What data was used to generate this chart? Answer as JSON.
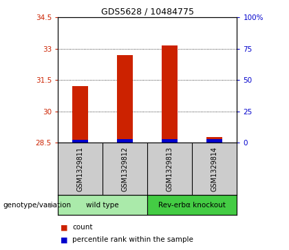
{
  "title": "GDS5628 / 10484775",
  "samples": [
    "GSM1329811",
    "GSM1329812",
    "GSM1329813",
    "GSM1329814"
  ],
  "red_values": [
    31.2,
    32.7,
    33.15,
    28.75
  ],
  "blue_values": [
    28.63,
    28.66,
    28.67,
    28.65
  ],
  "red_base": 28.5,
  "ylim_left": [
    28.5,
    34.5
  ],
  "ylim_right": [
    0,
    100
  ],
  "yticks_left": [
    28.5,
    30.0,
    31.5,
    33.0,
    34.5
  ],
  "yticks_right": [
    0,
    25,
    50,
    75,
    100
  ],
  "ytick_labels_left": [
    "28.5",
    "30",
    "31.5",
    "33",
    "34.5"
  ],
  "ytick_labels_right": [
    "0",
    "25",
    "50",
    "75",
    "100%"
  ],
  "groups": [
    {
      "label": "wild type",
      "samples": [
        0,
        1
      ],
      "color": "#aaeaaa"
    },
    {
      "label": "Rev-erbα knockout",
      "samples": [
        2,
        3
      ],
      "color": "#44cc44"
    }
  ],
  "genotype_label": "genotype/variation",
  "legend_red": "count",
  "legend_blue": "percentile rank within the sample",
  "bar_width": 0.35,
  "red_color": "#CC2200",
  "blue_color": "#0000CC",
  "grid_color": "#000000",
  "bg_color": "#FFFFFF",
  "plot_bg": "#FFFFFF",
  "left_tick_color": "#CC2200",
  "right_tick_color": "#0000CC",
  "sample_bg": "#CCCCCC"
}
